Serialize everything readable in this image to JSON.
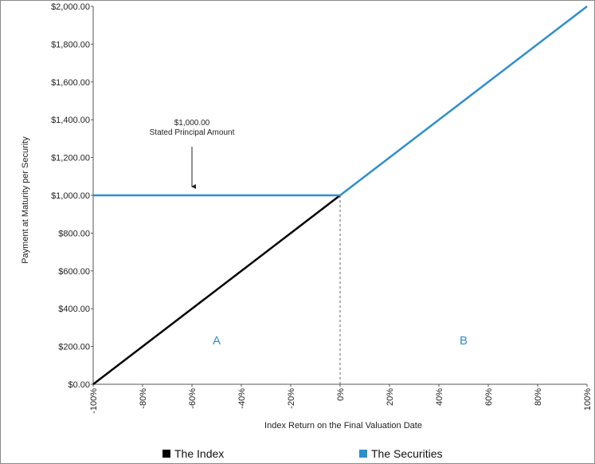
{
  "chart_data": {
    "type": "line",
    "title": "",
    "xlabel": "Index Return on the Final Valuation Date",
    "ylabel": "Payment at Maturity per Security",
    "xlim": [
      -100,
      100
    ],
    "ylim": [
      0,
      2000
    ],
    "x_ticks": [
      "-100%",
      "-80%",
      "-60%",
      "-40%",
      "-20%",
      "0%",
      "20%",
      "40%",
      "60%",
      "80%",
      "100%"
    ],
    "x_tick_values": [
      -100,
      -80,
      -60,
      -40,
      -20,
      0,
      20,
      40,
      60,
      80,
      100
    ],
    "y_ticks": [
      "$0.00",
      "$200.00",
      "$400.00",
      "$600.00",
      "$800.00",
      "$1,000.00",
      "$1,200.00",
      "$1,400.00",
      "$1,600.00",
      "$1,800.00",
      "$2,000.00"
    ],
    "y_tick_values": [
      0,
      200,
      400,
      600,
      800,
      1000,
      1200,
      1400,
      1600,
      1800,
      2000
    ],
    "grid": false,
    "legend_position": "bottom",
    "series": [
      {
        "name": "The Index",
        "color": "#000000",
        "x": [
          -100,
          0
        ],
        "y": [
          0,
          1000
        ]
      },
      {
        "name": "The Securities",
        "color": "#2e8fcc",
        "x": [
          -100,
          0,
          100
        ],
        "y": [
          1000,
          1000,
          2000
        ]
      }
    ],
    "annotations": {
      "principal_value": "$1,000.00",
      "principal_label": "Stated Principal Amount",
      "principal_arrow_x": -60,
      "region_a": "A",
      "region_a_x": -50,
      "region_b": "B",
      "region_b_x": 50,
      "region_y": 210,
      "region_color": "#2e8fcc",
      "divider_x": 0
    }
  },
  "legend": {
    "items": [
      {
        "label": "The Index",
        "color": "#000000"
      },
      {
        "label": "The Securities",
        "color": "#2e8fcc"
      }
    ]
  }
}
